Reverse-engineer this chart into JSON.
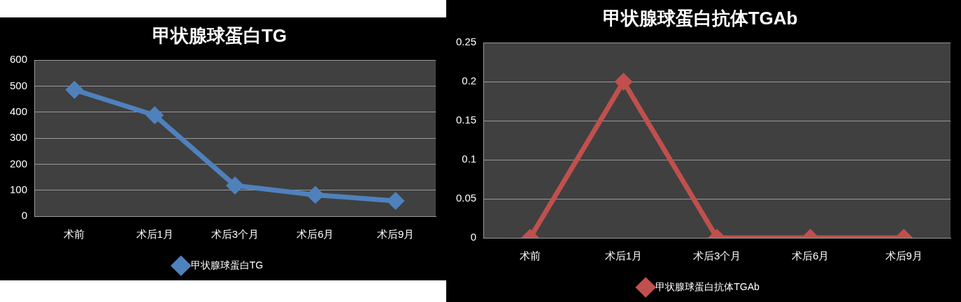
{
  "chart_data": [
    {
      "type": "line",
      "title": "甲状腺球蛋白TG",
      "categories": [
        "术前",
        "术后1月",
        "术后3个月",
        "术后6月",
        "术后9月"
      ],
      "series": [
        {
          "name": "甲状腺球蛋白TG",
          "color": "#4f81bd",
          "values": [
            486,
            388,
            118,
            82,
            59
          ]
        }
      ],
      "ylim": [
        0,
        600
      ],
      "yticks": [
        0,
        100,
        200,
        300,
        400,
        500,
        600
      ],
      "grid": "y",
      "legend": "bottom",
      "marker": "diamond"
    },
    {
      "type": "line",
      "title": "甲状腺球蛋白抗体TGAb",
      "categories": [
        "术前",
        "术后1月",
        "术后3个月",
        "术后6月",
        "术后9月"
      ],
      "series": [
        {
          "name": "甲状腺球蛋白抗体TGAb",
          "color": "#c0504d",
          "values": [
            0,
            0.2,
            0,
            0,
            0
          ]
        }
      ],
      "ylim": [
        0,
        0.25
      ],
      "yticks": [
        0,
        0.05,
        0.1,
        0.15,
        0.2,
        0.25
      ],
      "grid": "y",
      "legend": "bottom",
      "marker": "diamond"
    }
  ]
}
